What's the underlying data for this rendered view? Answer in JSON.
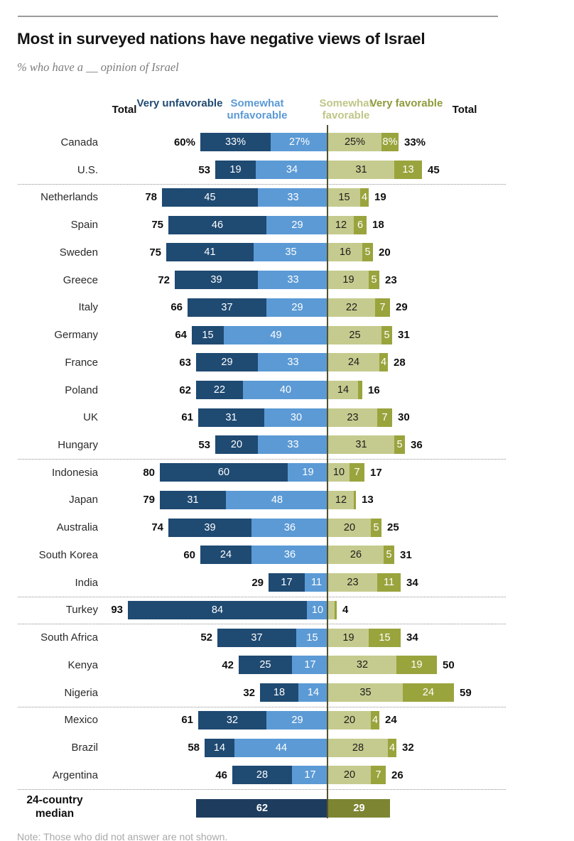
{
  "title": "Most in surveyed nations have negative views of Israel",
  "subtitle": "% who have a __ opinion of Israel",
  "note": "Note: Those who did not answer are not shown.",
  "chart_data": {
    "type": "bar",
    "variant": "diverging-stacked-horizontal",
    "title": "Most in surveyed nations have negative views of Israel",
    "subtitle": "% who have a __ opinion of Israel",
    "column_headers": [
      "Total",
      "Very unfavorable",
      "Somewhat unfavorable",
      "Somewhat favorable",
      "Very favorable",
      "Total"
    ],
    "legend_position": "top",
    "axis": {
      "center_value": 0,
      "units": "percentage points",
      "left_direction": "unfavorable",
      "right_direction": "favorable"
    },
    "colors": {
      "very_unfavorable": "#1f4a72",
      "somewhat_unfavorable": "#5b9ad5",
      "somewhat_favorable": "#c5cb8e",
      "very_favorable": "#9aa43d",
      "median_unfavorable": "#1e3d5e",
      "median_favorable": "#7d8533",
      "axis_line": "#52522e"
    },
    "rows": [
      {
        "country": "Canada",
        "separator_before": false,
        "total_unfavorable": "60%",
        "very_unfavorable": {
          "value": 33,
          "label": "33%"
        },
        "somewhat_unfavorable": {
          "value": 27,
          "label": "27%"
        },
        "somewhat_favorable": {
          "value": 25,
          "label": "25%"
        },
        "very_favorable": {
          "value": 8,
          "label": "8%"
        },
        "total_favorable": "33%"
      },
      {
        "country": "U.S.",
        "separator_before": false,
        "total_unfavorable": "53",
        "very_unfavorable": {
          "value": 19,
          "label": "19"
        },
        "somewhat_unfavorable": {
          "value": 34,
          "label": "34"
        },
        "somewhat_favorable": {
          "value": 31,
          "label": "31"
        },
        "very_favorable": {
          "value": 13,
          "label": "13"
        },
        "total_favorable": "45"
      },
      {
        "country": "Netherlands",
        "separator_before": true,
        "total_unfavorable": "78",
        "very_unfavorable": {
          "value": 45,
          "label": "45"
        },
        "somewhat_unfavorable": {
          "value": 33,
          "label": "33"
        },
        "somewhat_favorable": {
          "value": 15,
          "label": "15"
        },
        "very_favorable": {
          "value": 4,
          "label": "4"
        },
        "total_favorable": "19"
      },
      {
        "country": "Spain",
        "separator_before": false,
        "total_unfavorable": "75",
        "very_unfavorable": {
          "value": 46,
          "label": "46"
        },
        "somewhat_unfavorable": {
          "value": 29,
          "label": "29"
        },
        "somewhat_favorable": {
          "value": 12,
          "label": "12"
        },
        "very_favorable": {
          "value": 6,
          "label": "6"
        },
        "total_favorable": "18"
      },
      {
        "country": "Sweden",
        "separator_before": false,
        "total_unfavorable": "75",
        "very_unfavorable": {
          "value": 41,
          "label": "41"
        },
        "somewhat_unfavorable": {
          "value": 35,
          "label": "35"
        },
        "somewhat_favorable": {
          "value": 16,
          "label": "16"
        },
        "very_favorable": {
          "value": 5,
          "label": "5"
        },
        "total_favorable": "20"
      },
      {
        "country": "Greece",
        "separator_before": false,
        "total_unfavorable": "72",
        "very_unfavorable": {
          "value": 39,
          "label": "39"
        },
        "somewhat_unfavorable": {
          "value": 33,
          "label": "33"
        },
        "somewhat_favorable": {
          "value": 19,
          "label": "19"
        },
        "very_favorable": {
          "value": 5,
          "label": "5"
        },
        "total_favorable": "23"
      },
      {
        "country": "Italy",
        "separator_before": false,
        "total_unfavorable": "66",
        "very_unfavorable": {
          "value": 37,
          "label": "37"
        },
        "somewhat_unfavorable": {
          "value": 29,
          "label": "29"
        },
        "somewhat_favorable": {
          "value": 22,
          "label": "22"
        },
        "very_favorable": {
          "value": 7,
          "label": "7"
        },
        "total_favorable": "29"
      },
      {
        "country": "Germany",
        "separator_before": false,
        "total_unfavorable": "64",
        "very_unfavorable": {
          "value": 15,
          "label": "15"
        },
        "somewhat_unfavorable": {
          "value": 49,
          "label": "49"
        },
        "somewhat_favorable": {
          "value": 25,
          "label": "25"
        },
        "very_favorable": {
          "value": 5,
          "label": "5"
        },
        "total_favorable": "31"
      },
      {
        "country": "France",
        "separator_before": false,
        "total_unfavorable": "63",
        "very_unfavorable": {
          "value": 29,
          "label": "29"
        },
        "somewhat_unfavorable": {
          "value": 33,
          "label": "33"
        },
        "somewhat_favorable": {
          "value": 24,
          "label": "24"
        },
        "very_favorable": {
          "value": 4,
          "label": "4"
        },
        "total_favorable": "28"
      },
      {
        "country": "Poland",
        "separator_before": false,
        "total_unfavorable": "62",
        "very_unfavorable": {
          "value": 22,
          "label": "22"
        },
        "somewhat_unfavorable": {
          "value": 40,
          "label": "40"
        },
        "somewhat_favorable": {
          "value": 14,
          "label": "14"
        },
        "very_favorable": {
          "value": 2,
          "label": ""
        },
        "total_favorable": "16"
      },
      {
        "country": "UK",
        "separator_before": false,
        "total_unfavorable": "61",
        "very_unfavorable": {
          "value": 31,
          "label": "31"
        },
        "somewhat_unfavorable": {
          "value": 30,
          "label": "30"
        },
        "somewhat_favorable": {
          "value": 23,
          "label": "23"
        },
        "very_favorable": {
          "value": 7,
          "label": "7"
        },
        "total_favorable": "30"
      },
      {
        "country": "Hungary",
        "separator_before": false,
        "total_unfavorable": "53",
        "very_unfavorable": {
          "value": 20,
          "label": "20"
        },
        "somewhat_unfavorable": {
          "value": 33,
          "label": "33"
        },
        "somewhat_favorable": {
          "value": 31,
          "label": "31"
        },
        "very_favorable": {
          "value": 5,
          "label": "5"
        },
        "total_favorable": "36"
      },
      {
        "country": "Indonesia",
        "separator_before": true,
        "total_unfavorable": "80",
        "very_unfavorable": {
          "value": 60,
          "label": "60"
        },
        "somewhat_unfavorable": {
          "value": 19,
          "label": "19"
        },
        "somewhat_favorable": {
          "value": 10,
          "label": "10"
        },
        "very_favorable": {
          "value": 7,
          "label": "7"
        },
        "total_favorable": "17"
      },
      {
        "country": "Japan",
        "separator_before": false,
        "total_unfavorable": "79",
        "very_unfavorable": {
          "value": 31,
          "label": "31"
        },
        "somewhat_unfavorable": {
          "value": 48,
          "label": "48"
        },
        "somewhat_favorable": {
          "value": 12,
          "label": "12"
        },
        "very_favorable": {
          "value": 1,
          "label": ""
        },
        "total_favorable": "13"
      },
      {
        "country": "Australia",
        "separator_before": false,
        "total_unfavorable": "74",
        "very_unfavorable": {
          "value": 39,
          "label": "39"
        },
        "somewhat_unfavorable": {
          "value": 36,
          "label": "36"
        },
        "somewhat_favorable": {
          "value": 20,
          "label": "20"
        },
        "very_favorable": {
          "value": 5,
          "label": "5"
        },
        "total_favorable": "25"
      },
      {
        "country": "South Korea",
        "separator_before": false,
        "total_unfavorable": "60",
        "very_unfavorable": {
          "value": 24,
          "label": "24"
        },
        "somewhat_unfavorable": {
          "value": 36,
          "label": "36"
        },
        "somewhat_favorable": {
          "value": 26,
          "label": "26"
        },
        "very_favorable": {
          "value": 5,
          "label": "5"
        },
        "total_favorable": "31"
      },
      {
        "country": "India",
        "separator_before": false,
        "total_unfavorable": "29",
        "very_unfavorable": {
          "value": 17,
          "label": "17"
        },
        "somewhat_unfavorable": {
          "value": 11,
          "label": "11"
        },
        "somewhat_favorable": {
          "value": 23,
          "label": "23"
        },
        "very_favorable": {
          "value": 11,
          "label": "11"
        },
        "total_favorable": "34"
      },
      {
        "country": "Turkey",
        "separator_before": true,
        "total_unfavorable": "93",
        "very_unfavorable": {
          "value": 84,
          "label": "84"
        },
        "somewhat_unfavorable": {
          "value": 10,
          "label": "10"
        },
        "somewhat_favorable": {
          "value": 3,
          "label": ""
        },
        "very_favorable": {
          "value": 1,
          "label": ""
        },
        "total_favorable": "4"
      },
      {
        "country": "South Africa",
        "separator_before": true,
        "total_unfavorable": "52",
        "very_unfavorable": {
          "value": 37,
          "label": "37"
        },
        "somewhat_unfavorable": {
          "value": 15,
          "label": "15"
        },
        "somewhat_favorable": {
          "value": 19,
          "label": "19"
        },
        "very_favorable": {
          "value": 15,
          "label": "15"
        },
        "total_favorable": "34"
      },
      {
        "country": "Kenya",
        "separator_before": false,
        "total_unfavorable": "42",
        "very_unfavorable": {
          "value": 25,
          "label": "25"
        },
        "somewhat_unfavorable": {
          "value": 17,
          "label": "17"
        },
        "somewhat_favorable": {
          "value": 32,
          "label": "32"
        },
        "very_favorable": {
          "value": 19,
          "label": "19"
        },
        "total_favorable": "50"
      },
      {
        "country": "Nigeria",
        "separator_before": false,
        "total_unfavorable": "32",
        "very_unfavorable": {
          "value": 18,
          "label": "18"
        },
        "somewhat_unfavorable": {
          "value": 14,
          "label": "14"
        },
        "somewhat_favorable": {
          "value": 35,
          "label": "35"
        },
        "very_favorable": {
          "value": 24,
          "label": "24"
        },
        "total_favorable": "59"
      },
      {
        "country": "Mexico",
        "separator_before": true,
        "total_unfavorable": "61",
        "very_unfavorable": {
          "value": 32,
          "label": "32"
        },
        "somewhat_unfavorable": {
          "value": 29,
          "label": "29"
        },
        "somewhat_favorable": {
          "value": 20,
          "label": "20"
        },
        "very_favorable": {
          "value": 4,
          "label": "4"
        },
        "total_favorable": "24"
      },
      {
        "country": "Brazil",
        "separator_before": false,
        "total_unfavorable": "58",
        "very_unfavorable": {
          "value": 14,
          "label": "14"
        },
        "somewhat_unfavorable": {
          "value": 44,
          "label": "44"
        },
        "somewhat_favorable": {
          "value": 28,
          "label": "28"
        },
        "very_favorable": {
          "value": 4,
          "label": "4"
        },
        "total_favorable": "32"
      },
      {
        "country": "Argentina",
        "separator_before": false,
        "total_unfavorable": "46",
        "very_unfavorable": {
          "value": 28,
          "label": "28"
        },
        "somewhat_unfavorable": {
          "value": 17,
          "label": "17"
        },
        "somewhat_favorable": {
          "value": 20,
          "label": "20"
        },
        "very_favorable": {
          "value": 7,
          "label": "7"
        },
        "total_favorable": "26"
      },
      {
        "country": "Argentina-end-marker",
        "separator_before": false,
        "hidden": true,
        "total_unfavorable": "",
        "very_unfavorable": {
          "value": 0,
          "label": ""
        },
        "somewhat_unfavorable": {
          "value": 0,
          "label": ""
        },
        "somewhat_favorable": {
          "value": 0,
          "label": ""
        },
        "very_favorable": {
          "value": 0,
          "label": ""
        },
        "total_favorable": ""
      }
    ],
    "median": {
      "label_lines": [
        "24-country",
        "median"
      ],
      "unfavorable": {
        "value": 62,
        "label": "62"
      },
      "favorable": {
        "value": 29,
        "label": "29"
      }
    },
    "note": "Note: Those who did not answer are not shown."
  }
}
